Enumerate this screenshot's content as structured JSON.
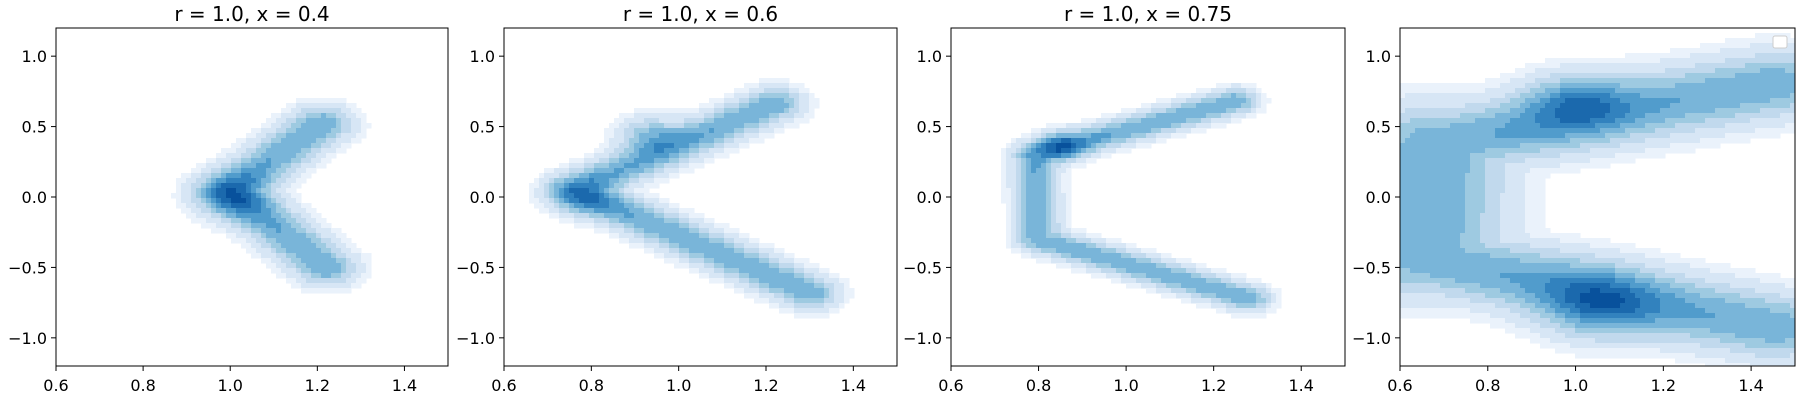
{
  "chart_data": [
    {
      "type": "area",
      "subtype": "kde-filled-contour",
      "title": "r = 1.0, x = 0.4",
      "xlim": [
        0.6,
        1.5
      ],
      "ylim": [
        -1.2,
        1.2
      ],
      "xticks": [
        0.6,
        0.8,
        1.0,
        1.2,
        1.4
      ],
      "xtick_labels": [
        "0.6",
        "0.8",
        "1.0",
        "1.2",
        "1.4"
      ],
      "yticks": [
        1.0,
        0.5,
        0.0,
        -0.5,
        -1.0
      ],
      "ytick_labels": [
        "1.0",
        "0.5",
        "0.0",
        "−0.5",
        "−1.0"
      ],
      "legend": false,
      "density_shape": {
        "arms": [
          {
            "from": [
              1.21,
              0.52
            ],
            "to": [
              1.0,
              0.05
            ],
            "sigma": 0.05
          },
          {
            "from": [
              1.0,
              0.05
            ],
            "to": [
              1.22,
              -0.5
            ],
            "sigma": 0.05
          }
        ],
        "hotspots": [
          {
            "center": [
              1.0,
              0.0
            ],
            "spread": 0.06,
            "weight": 1.0
          }
        ]
      }
    },
    {
      "type": "area",
      "subtype": "kde-filled-contour",
      "title": "r = 1.0, x = 0.6",
      "xlim": [
        0.6,
        1.5
      ],
      "ylim": [
        -1.2,
        1.2
      ],
      "xticks": [
        0.6,
        0.8,
        1.0,
        1.2,
        1.4
      ],
      "xtick_labels": [
        "0.6",
        "0.8",
        "1.0",
        "1.2",
        "1.4"
      ],
      "yticks": [
        1.0,
        0.5,
        0.0,
        -0.5,
        -1.0
      ],
      "ytick_labels": [
        "1.0",
        "0.5",
        "0.0",
        "−0.5",
        "−1.0"
      ],
      "legend": false,
      "density_shape": {
        "arms": [
          {
            "from": [
              1.22,
              0.66
            ],
            "to": [
              0.76,
              0.05
            ],
            "sigma": 0.045
          },
          {
            "from": [
              0.76,
              0.05
            ],
            "to": [
              1.3,
              -0.68
            ],
            "sigma": 0.045
          }
        ],
        "hotspots": [
          {
            "center": [
              0.93,
              0.45
            ],
            "spread": 0.05,
            "weight": 0.9
          },
          {
            "center": [
              0.78,
              0.0
            ],
            "spread": 0.05,
            "weight": 0.8
          }
        ]
      }
    },
    {
      "type": "area",
      "subtype": "kde-filled-contour",
      "title": "r = 1.0, x = 0.75",
      "xlim": [
        0.6,
        1.5
      ],
      "ylim": [
        -1.2,
        1.2
      ],
      "xticks": [
        0.6,
        0.8,
        1.0,
        1.2,
        1.4
      ],
      "xtick_labels": [
        "0.6",
        "0.8",
        "1.0",
        "1.2",
        "1.4"
      ],
      "yticks": [
        1.0,
        0.5,
        0.0,
        -0.5,
        -1.0
      ],
      "ytick_labels": [
        "1.0",
        "0.5",
        "0.0",
        "−0.5",
        "−1.0"
      ],
      "legend": false,
      "density_shape": {
        "arms": [
          {
            "from": [
              1.25,
              0.68
            ],
            "to": [
              0.79,
              0.3
            ],
            "sigma": 0.035
          },
          {
            "from": [
              0.79,
              0.3
            ],
            "to": [
              0.8,
              -0.3
            ],
            "sigma": 0.035
          },
          {
            "from": [
              0.8,
              -0.3
            ],
            "to": [
              1.28,
              -0.72
            ],
            "sigma": 0.035
          }
        ],
        "hotspots": [
          {
            "center": [
              0.85,
              0.36
            ],
            "spread": 0.04,
            "weight": 1.0
          }
        ]
      }
    },
    {
      "type": "area",
      "subtype": "kde-filled-contour",
      "title": "",
      "xlim": [
        0.6,
        1.5
      ],
      "ylim": [
        -1.2,
        1.2
      ],
      "xticks": [
        0.6,
        0.8,
        1.0,
        1.2,
        1.4
      ],
      "xtick_labels": [
        "0.6",
        "0.8",
        "1.0",
        "1.2",
        "1.4"
      ],
      "yticks": [
        1.0,
        0.5,
        0.0,
        -0.5,
        -1.0
      ],
      "ytick_labels": [
        "1.0",
        "0.5",
        "0.0",
        "−0.5",
        "−1.0"
      ],
      "legend": true,
      "legend_position": "top-right",
      "legend_entries": [],
      "density_shape": {
        "arms": [
          {
            "from": [
              0.72,
              0.4
            ],
            "to": [
              1.45,
              0.8
            ],
            "sigma": 0.09
          },
          {
            "from": [
              0.68,
              -0.45
            ],
            "to": [
              1.45,
              -0.92
            ],
            "sigma": 0.09
          },
          {
            "from": [
              0.68,
              0.35
            ],
            "to": [
              0.66,
              -0.4
            ],
            "sigma": 0.12
          }
        ],
        "hotspots": [
          {
            "center": [
              1.0,
              0.68
            ],
            "spread": 0.08,
            "weight": 1.0
          },
          {
            "center": [
              1.05,
              -0.78
            ],
            "spread": 0.09,
            "weight": 1.1
          }
        ]
      }
    }
  ],
  "colors": {
    "levels": [
      "#ffffff",
      "#eaf2fb",
      "#d7e6f5",
      "#c1d9ed",
      "#9ecae1",
      "#79b5d9",
      "#519ccc",
      "#3282be",
      "#1b69ad",
      "#08519c"
    ]
  }
}
